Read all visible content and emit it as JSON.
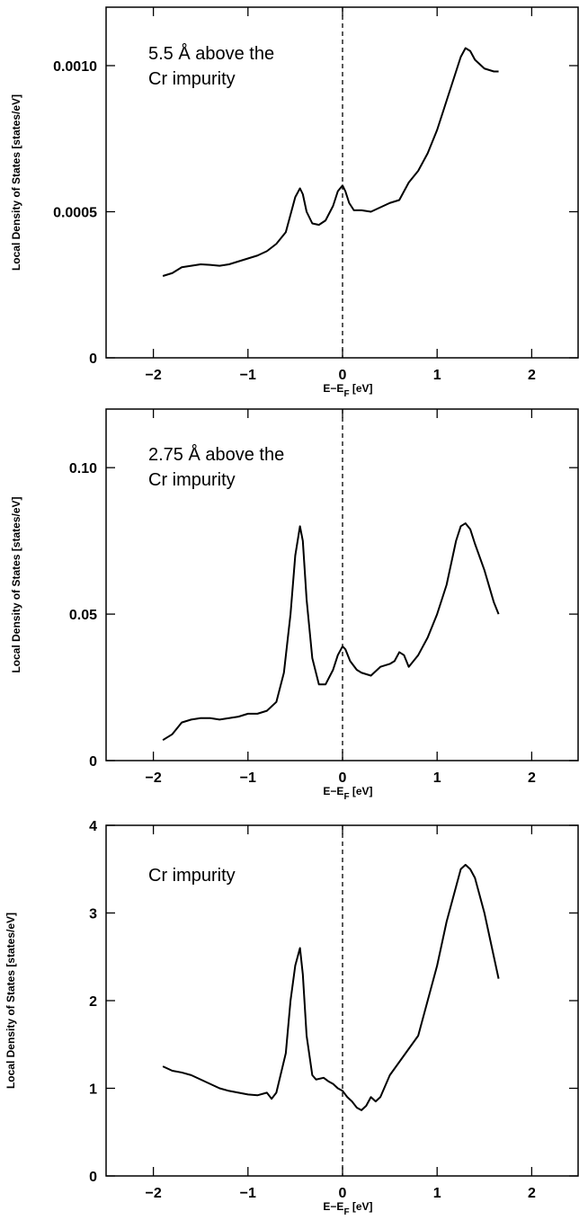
{
  "chart_data": [
    {
      "type": "line",
      "annotation": [
        "5.5 Å above the",
        "Cr impurity"
      ],
      "xlabel": "E−E",
      "xlabel_sub": "F",
      "xlabel_unit": " [eV]",
      "ylabel": "Local Density of States [states/eV]",
      "xlim": [
        -2.5,
        2.5
      ],
      "ylim": [
        0,
        0.0012
      ],
      "xticks": [
        -2,
        -1,
        0,
        1,
        2
      ],
      "xtick_labels": [
        "−2",
        "−1",
        "0",
        "1",
        "2"
      ],
      "yticks": [
        0,
        0.0005,
        0.001
      ],
      "ytick_labels": [
        "0",
        "0.0005",
        "0.0010"
      ],
      "reference_line_x": 0,
      "series": [
        {
          "x": [
            -1.9,
            -1.8,
            -1.7,
            -1.6,
            -1.5,
            -1.4,
            -1.3,
            -1.2,
            -1.1,
            -1.0,
            -0.9,
            -0.8,
            -0.7,
            -0.6,
            -0.55,
            -0.5,
            -0.45,
            -0.42,
            -0.38,
            -0.32,
            -0.25,
            -0.18,
            -0.1,
            -0.05,
            0.0,
            0.03,
            0.07,
            0.12,
            0.2,
            0.3,
            0.4,
            0.5,
            0.6,
            0.7,
            0.8,
            0.9,
            1.0,
            1.1,
            1.2,
            1.25,
            1.3,
            1.35,
            1.4,
            1.5,
            1.6,
            1.65
          ],
          "y": [
            0.00028,
            0.00029,
            0.00031,
            0.000315,
            0.00032,
            0.000318,
            0.000315,
            0.00032,
            0.00033,
            0.00034,
            0.00035,
            0.000365,
            0.00039,
            0.00043,
            0.00049,
            0.00055,
            0.00058,
            0.00056,
            0.0005,
            0.00046,
            0.000455,
            0.00047,
            0.00052,
            0.00057,
            0.00059,
            0.00057,
            0.00053,
            0.000505,
            0.000505,
            0.0005,
            0.000515,
            0.00053,
            0.00054,
            0.0006,
            0.00064,
            0.0007,
            0.00078,
            0.00088,
            0.00098,
            0.00103,
            0.00106,
            0.00105,
            0.00102,
            0.00099,
            0.00098,
            0.00098
          ]
        }
      ]
    },
    {
      "type": "line",
      "annotation": [
        "2.75 Å above the",
        "Cr impurity"
      ],
      "xlabel": "E−E",
      "xlabel_sub": "F",
      "xlabel_unit": " [eV]",
      "ylabel": "Local Density of States [states/eV]",
      "xlim": [
        -2.5,
        2.5
      ],
      "ylim": [
        0,
        0.12
      ],
      "xticks": [
        -2,
        -1,
        0,
        1,
        2
      ],
      "xtick_labels": [
        "−2",
        "−1",
        "0",
        "1",
        "2"
      ],
      "yticks": [
        0,
        0.05,
        0.1
      ],
      "ytick_labels": [
        "0",
        "0.05",
        "0.10"
      ],
      "reference_line_x": 0,
      "series": [
        {
          "x": [
            -1.9,
            -1.8,
            -1.7,
            -1.6,
            -1.5,
            -1.4,
            -1.3,
            -1.2,
            -1.1,
            -1.0,
            -0.9,
            -0.8,
            -0.7,
            -0.62,
            -0.55,
            -0.5,
            -0.45,
            -0.42,
            -0.38,
            -0.32,
            -0.25,
            -0.18,
            -0.1,
            -0.05,
            0.0,
            0.03,
            0.08,
            0.15,
            0.2,
            0.3,
            0.4,
            0.5,
            0.55,
            0.6,
            0.65,
            0.7,
            0.8,
            0.9,
            1.0,
            1.1,
            1.2,
            1.25,
            1.3,
            1.35,
            1.4,
            1.5,
            1.6,
            1.65
          ],
          "y": [
            0.007,
            0.009,
            0.013,
            0.014,
            0.0145,
            0.0145,
            0.014,
            0.0145,
            0.015,
            0.016,
            0.016,
            0.017,
            0.02,
            0.03,
            0.05,
            0.07,
            0.08,
            0.075,
            0.055,
            0.035,
            0.026,
            0.026,
            0.031,
            0.036,
            0.039,
            0.038,
            0.034,
            0.031,
            0.03,
            0.029,
            0.032,
            0.033,
            0.034,
            0.037,
            0.036,
            0.032,
            0.036,
            0.042,
            0.05,
            0.06,
            0.075,
            0.08,
            0.081,
            0.079,
            0.074,
            0.065,
            0.054,
            0.05
          ]
        }
      ]
    },
    {
      "type": "line",
      "annotation": [
        "Cr impurity"
      ],
      "xlabel": "E−E",
      "xlabel_sub": "F",
      "xlabel_unit": " [eV]",
      "ylabel": "Local Density of States [states/eV]",
      "xlim": [
        -2.5,
        2.5
      ],
      "ylim": [
        0,
        4
      ],
      "xticks": [
        -2,
        -1,
        0,
        1,
        2
      ],
      "xtick_labels": [
        "−2",
        "−1",
        "0",
        "1",
        "2"
      ],
      "yticks": [
        0,
        1,
        2,
        3,
        4
      ],
      "ytick_labels": [
        "0",
        "1",
        "2",
        "3",
        "4"
      ],
      "reference_line_x": 0,
      "series": [
        {
          "x": [
            -1.9,
            -1.8,
            -1.7,
            -1.6,
            -1.5,
            -1.4,
            -1.3,
            -1.2,
            -1.1,
            -1.0,
            -0.9,
            -0.8,
            -0.75,
            -0.7,
            -0.6,
            -0.55,
            -0.5,
            -0.45,
            -0.42,
            -0.38,
            -0.32,
            -0.28,
            -0.2,
            -0.15,
            -0.1,
            -0.05,
            0.0,
            0.05,
            0.1,
            0.15,
            0.2,
            0.25,
            0.3,
            0.35,
            0.4,
            0.5,
            0.6,
            0.7,
            0.8,
            0.9,
            1.0,
            1.1,
            1.2,
            1.25,
            1.3,
            1.35,
            1.4,
            1.5,
            1.6,
            1.65
          ],
          "y": [
            1.25,
            1.2,
            1.18,
            1.15,
            1.1,
            1.05,
            1.0,
            0.97,
            0.95,
            0.93,
            0.92,
            0.95,
            0.88,
            0.95,
            1.4,
            2.0,
            2.4,
            2.6,
            2.3,
            1.6,
            1.15,
            1.1,
            1.12,
            1.08,
            1.05,
            1.0,
            0.97,
            0.9,
            0.85,
            0.78,
            0.75,
            0.8,
            0.9,
            0.85,
            0.9,
            1.15,
            1.3,
            1.45,
            1.6,
            2.0,
            2.4,
            2.9,
            3.3,
            3.5,
            3.55,
            3.5,
            3.4,
            3.0,
            2.5,
            2.25
          ]
        }
      ]
    }
  ]
}
